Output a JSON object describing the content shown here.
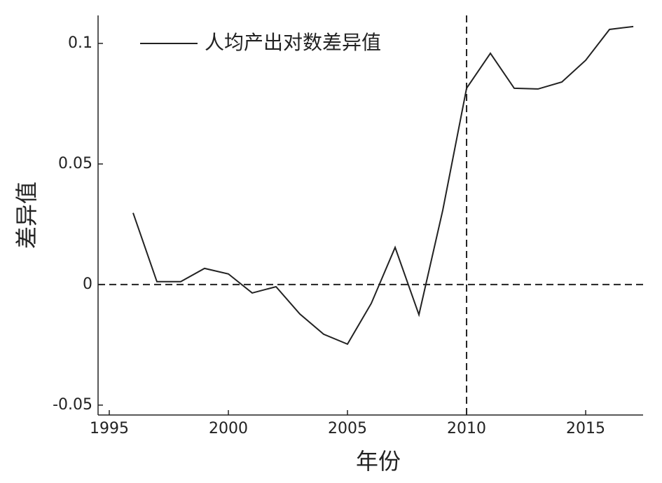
{
  "chart_data": {
    "type": "line",
    "x_label": "年份",
    "y_label": "差异值",
    "x": [
      1996,
      1997,
      1998,
      1999,
      2000,
      2001,
      2002,
      2003,
      2004,
      2005,
      2006,
      2007,
      2008,
      2009,
      2010,
      2011,
      2012,
      2013,
      2014,
      2015,
      2016,
      2017
    ],
    "series": [
      {
        "name": "人均产出对数差异值",
        "color": "#222222",
        "values": [
          0.0297,
          0.0012,
          0.0012,
          0.0067,
          0.0044,
          -0.0035,
          -0.0009,
          -0.0122,
          -0.0206,
          -0.0247,
          -0.0078,
          0.0154,
          -0.0125,
          0.0308,
          0.0814,
          0.0959,
          0.0814,
          0.0811,
          0.084,
          0.093,
          0.1058,
          0.107
        ]
      }
    ],
    "xlim": [
      1994.53,
      2017.41
    ],
    "xticks": [
      1995,
      2000,
      2005,
      2010,
      2015
    ],
    "ylim": [
      -0.0541,
      0.1116
    ],
    "yticks": [
      -0.05,
      0,
      0.05,
      0.1
    ],
    "hlines": [
      0
    ],
    "vlines": [
      2010
    ],
    "legend": "upper-left"
  }
}
